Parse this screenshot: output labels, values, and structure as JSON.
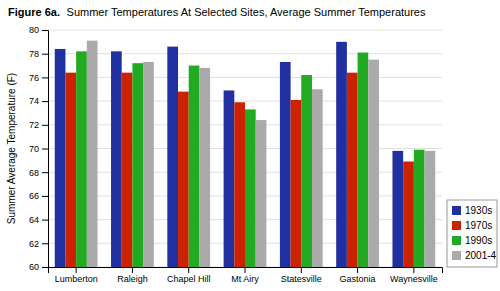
{
  "chart_data": {
    "type": "bar",
    "title": "Figure 6a.",
    "subtitle": "Summer Temperatures At Selected Sites, Average Summer Temperatures",
    "y_label": "Summer Average Temperature (F)",
    "categories": [
      "Lumberton",
      "Raleigh",
      "Chapel Hill",
      "Mt Airy",
      "Statesville",
      "Gastonia",
      "Waynesville"
    ],
    "series": [
      {
        "name": "1930s",
        "color": "#2030A0",
        "values": [
          78.4,
          78.2,
          78.6,
          74.9,
          77.3,
          79.0,
          69.8
        ]
      },
      {
        "name": "1970s",
        "color": "#CC2200",
        "values": [
          76.4,
          76.4,
          74.8,
          73.9,
          74.1,
          76.4,
          68.9
        ]
      },
      {
        "name": "1990s",
        "color": "#22AA22",
        "values": [
          78.2,
          77.2,
          77.0,
          73.3,
          76.2,
          78.1,
          69.9
        ]
      },
      {
        "name": "2001-4",
        "color": "#AAAAAA",
        "values": [
          79.1,
          77.3,
          76.8,
          72.4,
          75.0,
          77.5,
          69.8
        ]
      }
    ],
    "ylim": [
      60,
      80
    ],
    "yticks": [
      60,
      62,
      64,
      66,
      68,
      70,
      72,
      74,
      76,
      78,
      80
    ],
    "grid": true,
    "legend": "lower right"
  }
}
